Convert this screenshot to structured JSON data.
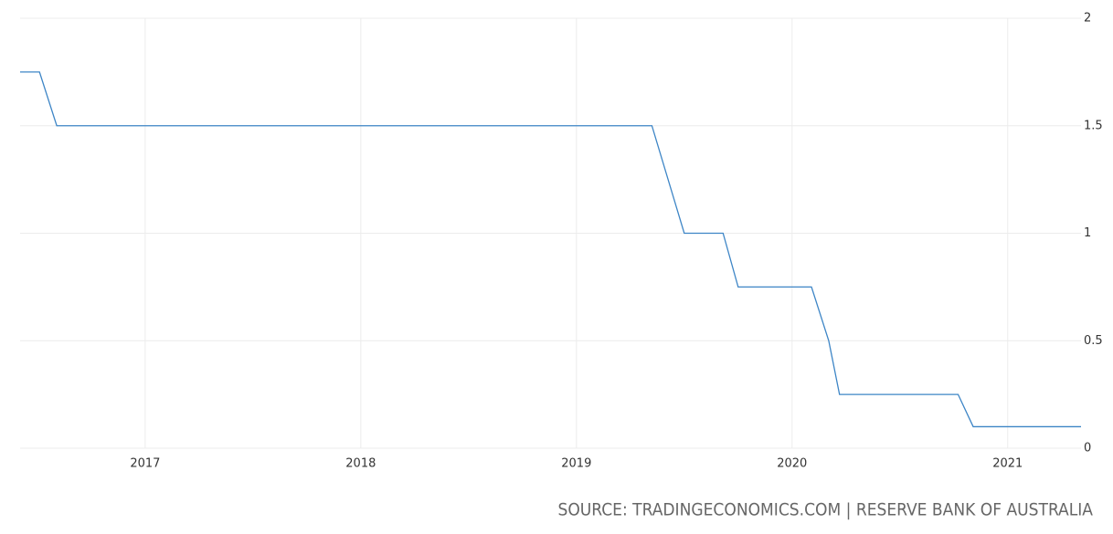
{
  "chart_data": {
    "type": "line",
    "source": "SOURCE: TRADINGECONOMICS.COM | RESERVE BANK OF AUSTRALIA",
    "x": [
      2016.42,
      2016.51,
      2016.59,
      2019.35,
      2019.5,
      2019.68,
      2019.75,
      2020.09,
      2020.17,
      2020.22,
      2020.77,
      2020.84,
      2021.34
    ],
    "series": [
      {
        "color": "#3d85c6",
        "values": [
          1.75,
          1.75,
          1.5,
          1.5,
          1.0,
          1.0,
          0.75,
          0.75,
          0.5,
          0.25,
          0.25,
          0.1,
          0.1
        ]
      }
    ],
    "xlim": [
      2016.42,
      2021.34
    ],
    "xticks": [
      2017,
      2018,
      2019,
      2020,
      2021
    ],
    "ylim": [
      0,
      2
    ],
    "yticks": [
      0,
      0.5,
      1,
      1.5,
      2
    ],
    "grid": true
  }
}
